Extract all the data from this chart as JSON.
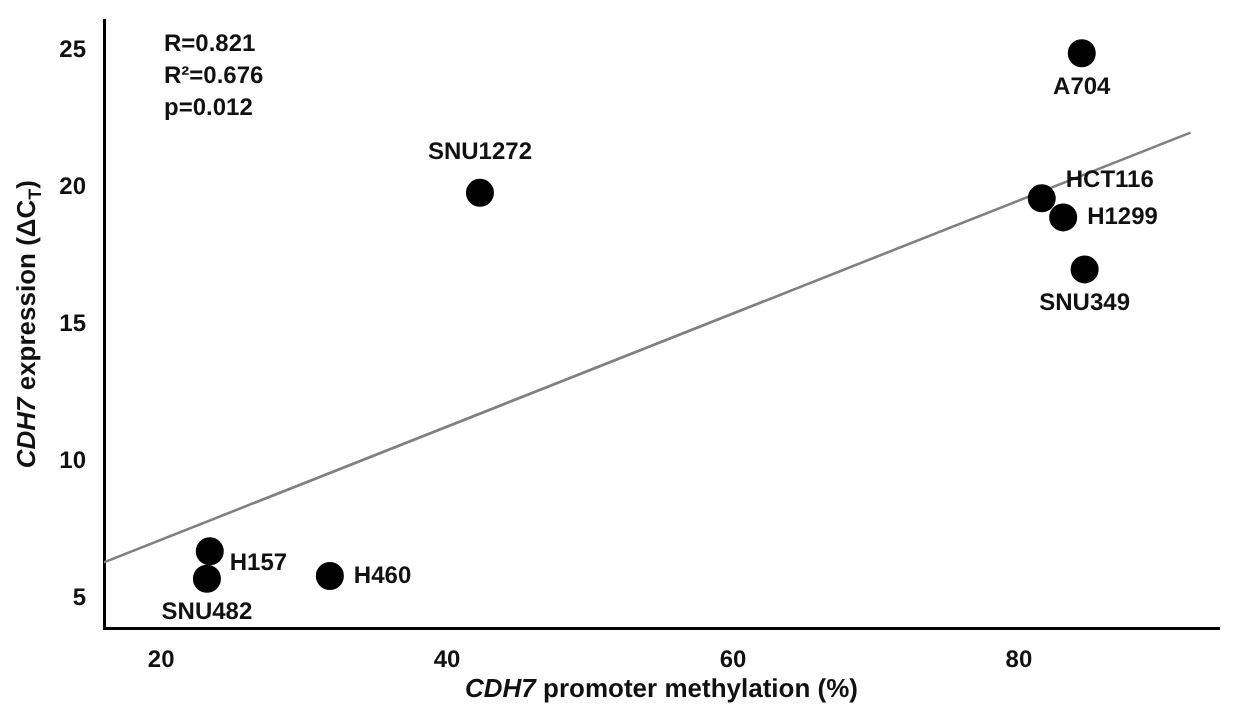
{
  "chart_data": {
    "type": "scatter",
    "xlabel": "CDH7 promoter methylation (%)",
    "ylabel": "CDH7 expression (ΔC$_{T}$)",
    "xlim": [
      16,
      94
    ],
    "xticks": [
      20,
      40,
      60,
      80
    ],
    "ylim": [
      3.9,
      26.1
    ],
    "yticks": [
      5,
      10,
      15,
      20,
      25
    ],
    "grid": false,
    "legend": false,
    "series": [
      {
        "marker": "circle",
        "color": "#000000",
        "x": [
          84.4,
          42.3,
          81.6,
          83.1,
          84.6,
          23.4,
          23.2,
          31.8
        ],
        "values": [
          24.9,
          19.8,
          19.6,
          18.9,
          17.0,
          6.7,
          5.7,
          5.8
        ]
      },
      {
        "type": "line",
        "marker": "none",
        "color": "#808080",
        "x": [
          16,
          92
        ],
        "values": [
          6.3,
          22.0
        ]
      }
    ],
    "annotations": [
      {
        "text": "A704",
        "x": 84.4,
        "y": 24.9
      },
      {
        "text": "SNU1272",
        "x": 42.3,
        "y": 19.8
      },
      {
        "text": "HCT116",
        "x": 81.6,
        "y": 19.6
      },
      {
        "text": "H1299",
        "x": 83.1,
        "y": 18.9
      },
      {
        "text": "SNU349",
        "x": 84.6,
        "y": 17.0
      },
      {
        "text": "H157",
        "x": 23.4,
        "y": 6.7
      },
      {
        "text": "SNU482",
        "x": 23.2,
        "y": 5.7
      },
      {
        "text": "H460",
        "x": 31.8,
        "y": 5.8
      },
      "R=0.821",
      "R²=0.676",
      "p=0.012"
    ]
  }
}
